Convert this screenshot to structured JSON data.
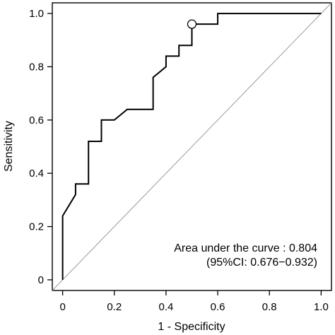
{
  "chart_data": {
    "type": "line",
    "title": "",
    "xlabel": "1 - Specificity",
    "ylabel": "Sensitivity",
    "xlim": [
      -0.04,
      1.04
    ],
    "ylim": [
      -0.04,
      1.04
    ],
    "xticks": [
      0,
      0.2,
      0.4,
      0.6,
      0.8,
      1.0
    ],
    "xtick_labels": [
      "0",
      "0.2",
      "0.4",
      "0.6",
      "0.8",
      "1.0"
    ],
    "yticks": [
      0,
      0.2,
      0.4,
      0.6,
      0.8,
      1.0
    ],
    "ytick_labels": [
      "0",
      "0.2",
      "0.4",
      "0.6",
      "0.8",
      "1.0"
    ],
    "grid": false,
    "reference_line": {
      "x": [
        -0.04,
        1.04
      ],
      "y": [
        -0.04,
        1.04
      ]
    },
    "series": [
      {
        "x": [
          0,
          0,
          0.05,
          0.05,
          0.1,
          0.1,
          0.15,
          0.15,
          0.2,
          0.25,
          0.35,
          0.35,
          0.4,
          0.4,
          0.45,
          0.45,
          0.5,
          0.5,
          0.6,
          0.6,
          1.0
        ],
        "y": [
          0,
          0.24,
          0.32,
          0.36,
          0.36,
          0.52,
          0.52,
          0.6,
          0.6,
          0.64,
          0.64,
          0.76,
          0.8,
          0.84,
          0.84,
          0.88,
          0.88,
          0.96,
          0.96,
          1.0,
          1.0
        ]
      }
    ],
    "highlight_point": {
      "x": 0.5,
      "y": 0.96
    },
    "annotations": [
      "Area under the curve : 0.804",
      "(95%CI: 0.676−0.932)"
    ]
  }
}
